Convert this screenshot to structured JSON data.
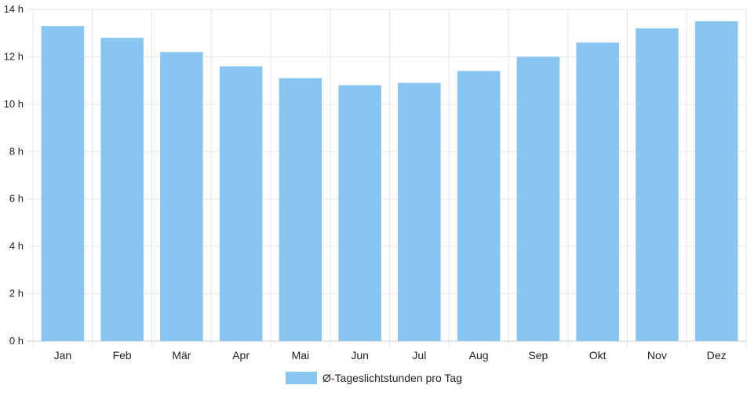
{
  "chart_data": {
    "type": "bar",
    "categories": [
      "Jan",
      "Feb",
      "Mär",
      "Apr",
      "Mai",
      "Jun",
      "Jul",
      "Aug",
      "Sep",
      "Okt",
      "Nov",
      "Dez"
    ],
    "series": [
      {
        "name": "Ø-Tageslichtstunden pro Tag",
        "values": [
          13.3,
          12.8,
          12.2,
          11.6,
          11.1,
          10.8,
          10.9,
          11.4,
          12.0,
          12.6,
          13.2,
          13.5
        ]
      }
    ],
    "yticks": [
      "0 h",
      "2 h",
      "4 h",
      "6 h",
      "8 h",
      "10 h",
      "12 h",
      "14 h"
    ],
    "ylim": [
      0,
      14
    ],
    "ytick_step": 2,
    "grid": true,
    "legend_position": "bottom",
    "bar_color": "#88c5f0",
    "grid_color": "#e6e6e6",
    "axis_color": "#cccccc",
    "title": "",
    "xlabel": "",
    "ylabel": ""
  }
}
